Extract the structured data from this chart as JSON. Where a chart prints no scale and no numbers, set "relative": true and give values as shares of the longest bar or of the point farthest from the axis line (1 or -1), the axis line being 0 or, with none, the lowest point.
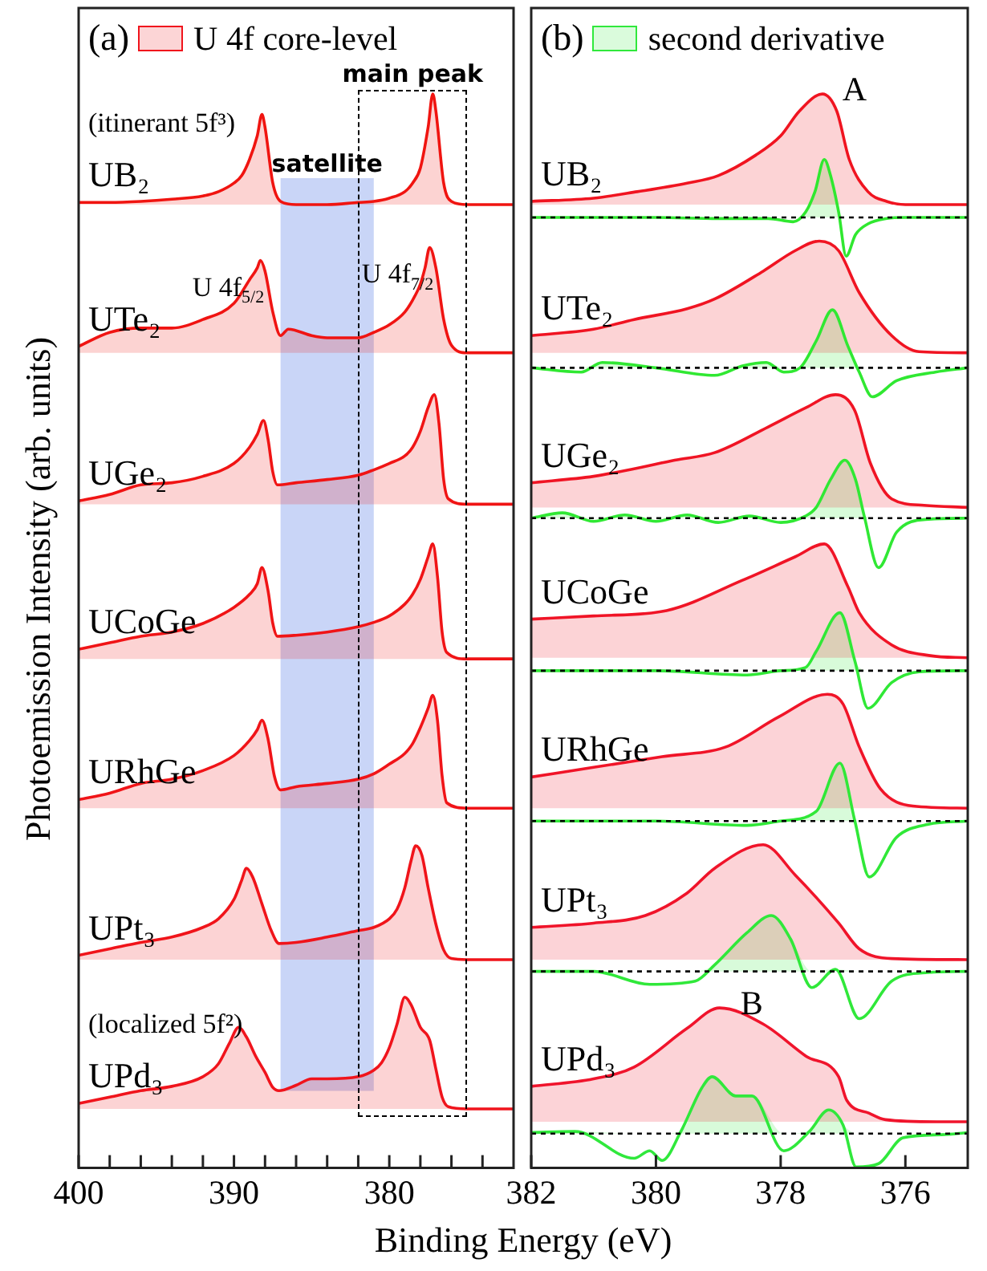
{
  "chart_data": [
    {
      "type": "line",
      "title": "(a)",
      "legend_title": "U 4f core-level",
      "legend": "top left",
      "xlabel": "Binding Energy (eV)",
      "ylabel": "Photoemission Intensity (arb. units)",
      "relative": true,
      "xlim": [
        400,
        372
      ],
      "xticks": [
        400,
        {
          "value": 398,
          "label": null
        },
        {
          "value": 396,
          "label": null
        },
        {
          "value": 394,
          "label": null
        },
        {
          "value": 392,
          "label": null
        },
        390,
        {
          "value": 388,
          "label": null
        },
        {
          "value": 386,
          "label": null
        },
        {
          "value": 384,
          "label": null
        },
        {
          "value": 382,
          "label": null
        },
        380,
        {
          "value": 378,
          "label": null
        },
        {
          "value": 376,
          "label": null
        },
        {
          "value": 374,
          "label": null
        }
      ],
      "bands": [
        {
          "axis": "x",
          "from": 387,
          "to": 381,
          "label": "satellite",
          "color": "#c9d5f7"
        }
      ],
      "annotations": [
        "(itinerant 5f³)",
        {
          "text": "U 4f$_{5/2}$",
          "x": 388.3,
          "y": 0.845
        },
        {
          "text": "U 4f$_{7/2}$",
          "x": 377.4,
          "y": 0.857
        },
        "main peak",
        "(localized 5f²)"
      ],
      "series": [
        {
          "name": "UB₂",
          "color": "#f01410",
          "x": [
            400,
            398,
            396,
            394,
            392,
            391,
            390,
            389.5,
            389,
            388.5,
            388.2,
            388,
            387.5,
            387,
            386,
            384,
            382,
            381,
            380,
            379,
            378.5,
            378,
            377.5,
            377.2,
            377,
            376.5,
            376,
            375,
            374,
            372
          ],
          "values": [
            0.899,
            0.899,
            0.9,
            0.902,
            0.905,
            0.909,
            0.917,
            0.924,
            0.939,
            0.961,
            0.981,
            0.969,
            0.917,
            0.9,
            0.897,
            0.897,
            0.899,
            0.9,
            0.903,
            0.909,
            0.917,
            0.931,
            0.969,
            1.0,
            0.984,
            0.917,
            0.9,
            0.897,
            0.897,
            0.897
          ],
          "lower": [
            0.897,
            0.897,
            0.897,
            0.897,
            0.897,
            0.897,
            0.897,
            0.897,
            0.897,
            0.897,
            0.897,
            0.897,
            0.897,
            0.897,
            0.897,
            0.897,
            0.897,
            0.897,
            0.897,
            0.897,
            0.897,
            0.897,
            0.897,
            0.897,
            0.897,
            0.897,
            0.897,
            0.897,
            0.897,
            0.897
          ],
          "upper": [
            0.899,
            0.899,
            0.9,
            0.902,
            0.905,
            0.909,
            0.917,
            0.924,
            0.939,
            0.961,
            0.981,
            0.969,
            0.917,
            0.9,
            0.897,
            0.897,
            0.899,
            0.9,
            0.903,
            0.909,
            0.917,
            0.931,
            0.969,
            1.0,
            0.984,
            0.917,
            0.9,
            0.897,
            0.897,
            0.897
          ]
        },
        {
          "name": "UTe₂",
          "color": "#f01412",
          "x": [
            400,
            398,
            396,
            394,
            392,
            390,
            389,
            388.5,
            388.3,
            388,
            387.5,
            387,
            386.5,
            385,
            384,
            382,
            381,
            380,
            379,
            378.5,
            378,
            377.7,
            377.4,
            377,
            376.5,
            376,
            375,
            374,
            372
          ],
          "values": [
            0.765,
            0.778,
            0.782,
            0.782,
            0.79,
            0.805,
            0.827,
            0.838,
            0.845,
            0.835,
            0.797,
            0.775,
            0.781,
            0.775,
            0.773,
            0.773,
            0.778,
            0.785,
            0.797,
            0.808,
            0.823,
            0.838,
            0.857,
            0.838,
            0.79,
            0.766,
            0.759,
            0.759,
            0.759
          ],
          "lower": [
            0.759,
            0.759,
            0.759,
            0.759,
            0.759,
            0.759,
            0.759,
            0.759,
            0.759,
            0.759,
            0.759,
            0.759,
            0.759,
            0.759,
            0.759,
            0.759,
            0.759,
            0.759,
            0.759,
            0.759,
            0.759,
            0.759,
            0.759,
            0.759,
            0.759,
            0.759,
            0.759,
            0.759,
            0.759
          ],
          "upper": [
            0.765,
            0.778,
            0.782,
            0.782,
            0.79,
            0.805,
            0.827,
            0.838,
            0.845,
            0.835,
            0.797,
            0.775,
            0.781,
            0.775,
            0.773,
            0.773,
            0.778,
            0.785,
            0.797,
            0.808,
            0.823,
            0.838,
            0.857,
            0.838,
            0.79,
            0.766,
            0.759,
            0.759,
            0.759
          ]
        },
        {
          "name": "UGe₂",
          "color": "#f01414",
          "x": [
            400,
            398,
            396,
            394,
            392,
            390,
            389,
            388.5,
            388.1,
            387.8,
            387.5,
            387.2,
            386,
            384,
            382,
            381,
            380,
            379,
            378.5,
            378,
            377.5,
            377.1,
            376.8,
            376.5,
            376.2,
            375,
            374,
            372
          ],
          "values": [
            0.621,
            0.627,
            0.636,
            0.638,
            0.644,
            0.656,
            0.671,
            0.683,
            0.696,
            0.678,
            0.648,
            0.636,
            0.638,
            0.641,
            0.645,
            0.65,
            0.656,
            0.663,
            0.671,
            0.686,
            0.708,
            0.72,
            0.693,
            0.641,
            0.623,
            0.618,
            0.618,
            0.618
          ],
          "lower": [
            0.618,
            0.618,
            0.618,
            0.618,
            0.618,
            0.618,
            0.618,
            0.618,
            0.618,
            0.618,
            0.618,
            0.618,
            0.618,
            0.618,
            0.618,
            0.618,
            0.618,
            0.618,
            0.618,
            0.618,
            0.618,
            0.618,
            0.618,
            0.618,
            0.618,
            0.618,
            0.618,
            0.618
          ],
          "upper": [
            0.621,
            0.627,
            0.636,
            0.638,
            0.644,
            0.656,
            0.671,
            0.683,
            0.696,
            0.678,
            0.648,
            0.636,
            0.638,
            0.641,
            0.645,
            0.65,
            0.656,
            0.663,
            0.671,
            0.686,
            0.708,
            0.72,
            0.693,
            0.641,
            0.623,
            0.618,
            0.618,
            0.618
          ]
        },
        {
          "name": "UCoGe",
          "color": "#f01416",
          "x": [
            400,
            398,
            396,
            394,
            392,
            390,
            389,
            388.5,
            388.2,
            387.8,
            387.5,
            387.2,
            386,
            384,
            382,
            381,
            380,
            379,
            378.5,
            378,
            377.5,
            377.2,
            376.9,
            376.6,
            376.3,
            375,
            374,
            372
          ],
          "values": [
            0.483,
            0.489,
            0.495,
            0.499,
            0.507,
            0.522,
            0.534,
            0.544,
            0.559,
            0.537,
            0.507,
            0.495,
            0.496,
            0.499,
            0.504,
            0.508,
            0.514,
            0.525,
            0.534,
            0.548,
            0.569,
            0.581,
            0.551,
            0.499,
            0.48,
            0.474,
            0.474,
            0.474
          ],
          "lower": [
            0.474,
            0.474,
            0.474,
            0.474,
            0.474,
            0.474,
            0.474,
            0.474,
            0.474,
            0.474,
            0.474,
            0.474,
            0.474,
            0.474,
            0.474,
            0.474,
            0.474,
            0.474,
            0.474,
            0.474,
            0.474,
            0.474,
            0.474,
            0.474,
            0.474,
            0.474,
            0.474,
            0.474
          ],
          "upper": [
            0.483,
            0.489,
            0.495,
            0.499,
            0.507,
            0.522,
            0.534,
            0.544,
            0.559,
            0.537,
            0.507,
            0.495,
            0.496,
            0.499,
            0.504,
            0.508,
            0.514,
            0.525,
            0.534,
            0.548,
            0.569,
            0.581,
            0.551,
            0.499,
            0.48,
            0.474,
            0.474,
            0.474
          ]
        },
        {
          "name": "URhGe",
          "color": "#f01418",
          "x": [
            400,
            398,
            396,
            394,
            392,
            390,
            389,
            388.5,
            388.2,
            387.8,
            387.4,
            387,
            386,
            384,
            382,
            381,
            380,
            379,
            378.5,
            378,
            377.5,
            377.2,
            376.9,
            376.6,
            376.3,
            375,
            374,
            372
          ],
          "values": [
            0.343,
            0.349,
            0.358,
            0.362,
            0.37,
            0.384,
            0.398,
            0.408,
            0.417,
            0.399,
            0.365,
            0.352,
            0.355,
            0.358,
            0.362,
            0.367,
            0.376,
            0.386,
            0.395,
            0.41,
            0.428,
            0.44,
            0.417,
            0.365,
            0.34,
            0.335,
            0.335,
            0.335
          ],
          "lower": [
            0.335,
            0.335,
            0.335,
            0.335,
            0.335,
            0.335,
            0.335,
            0.335,
            0.335,
            0.335,
            0.335,
            0.335,
            0.335,
            0.335,
            0.335,
            0.335,
            0.335,
            0.335,
            0.335,
            0.335,
            0.335,
            0.335,
            0.335,
            0.335,
            0.335,
            0.335,
            0.335,
            0.335
          ],
          "upper": [
            0.343,
            0.349,
            0.358,
            0.362,
            0.37,
            0.384,
            0.398,
            0.408,
            0.417,
            0.399,
            0.365,
            0.352,
            0.355,
            0.358,
            0.362,
            0.367,
            0.376,
            0.386,
            0.395,
            0.41,
            0.428,
            0.44,
            0.417,
            0.365,
            0.34,
            0.335,
            0.335,
            0.335
          ]
        },
        {
          "name": "UPt₃",
          "color": "#f0141a",
          "x": [
            400,
            398,
            396,
            394,
            392,
            391,
            390,
            389.5,
            389.2,
            388.8,
            388.2,
            387.6,
            387.1,
            386,
            384,
            382,
            381,
            380,
            379.5,
            379,
            378.6,
            378.3,
            377.9,
            377.5,
            377,
            376.5,
            376,
            375,
            374,
            372
          ],
          "values": [
            0.198,
            0.204,
            0.21,
            0.215,
            0.224,
            0.232,
            0.25,
            0.268,
            0.279,
            0.271,
            0.246,
            0.221,
            0.209,
            0.21,
            0.215,
            0.221,
            0.224,
            0.232,
            0.241,
            0.261,
            0.286,
            0.3,
            0.291,
            0.261,
            0.227,
            0.203,
            0.195,
            0.194,
            0.194,
            0.194
          ],
          "lower": [
            0.194,
            0.194,
            0.194,
            0.194,
            0.194,
            0.194,
            0.194,
            0.194,
            0.194,
            0.194,
            0.194,
            0.194,
            0.194,
            0.194,
            0.194,
            0.194,
            0.194,
            0.194,
            0.194,
            0.194,
            0.194,
            0.194,
            0.194,
            0.194,
            0.194,
            0.194,
            0.194,
            0.194,
            0.194,
            0.194
          ],
          "upper": [
            0.198,
            0.204,
            0.21,
            0.215,
            0.224,
            0.232,
            0.25,
            0.268,
            0.279,
            0.271,
            0.246,
            0.221,
            0.209,
            0.21,
            0.215,
            0.221,
            0.224,
            0.232,
            0.241,
            0.261,
            0.286,
            0.3,
            0.291,
            0.261,
            0.227,
            0.203,
            0.195,
            0.194,
            0.194,
            0.194
          ]
        },
        {
          "name": "UPd₃",
          "color": "#f0141c",
          "x": [
            400,
            398,
            396,
            394,
            392,
            391,
            390.3,
            389.7,
            389.2,
            388.6,
            388,
            387.5,
            387.1,
            386,
            385,
            384,
            382,
            381,
            380.5,
            380,
            379.5,
            379,
            378.6,
            378,
            377.4,
            377,
            376.6,
            376.2,
            375,
            374,
            372
          ],
          "values": [
            0.06,
            0.066,
            0.072,
            0.076,
            0.085,
            0.097,
            0.116,
            0.131,
            0.122,
            0.104,
            0.089,
            0.075,
            0.072,
            0.077,
            0.083,
            0.083,
            0.085,
            0.091,
            0.098,
            0.112,
            0.134,
            0.159,
            0.152,
            0.131,
            0.119,
            0.092,
            0.066,
            0.057,
            0.055,
            0.055,
            0.055
          ],
          "lower": [
            0.055,
            0.055,
            0.055,
            0.055,
            0.055,
            0.055,
            0.055,
            0.055,
            0.055,
            0.055,
            0.055,
            0.055,
            0.055,
            0.055,
            0.055,
            0.055,
            0.055,
            0.055,
            0.055,
            0.055,
            0.055,
            0.055,
            0.055,
            0.055,
            0.055,
            0.055,
            0.055,
            0.055,
            0.055,
            0.055,
            0.055
          ],
          "upper": [
            0.06,
            0.066,
            0.072,
            0.076,
            0.085,
            0.097,
            0.116,
            0.131,
            0.122,
            0.104,
            0.089,
            0.075,
            0.072,
            0.077,
            0.083,
            0.083,
            0.085,
            0.091,
            0.098,
            0.112,
            0.134,
            0.159,
            0.152,
            0.131,
            0.119,
            0.092,
            0.066,
            0.057,
            0.055,
            0.055,
            0.055
          ]
        }
      ]
    },
    {
      "type": "line",
      "title": "(b)",
      "legend_title": "second derivative",
      "legend": "top left",
      "relative": true,
      "xlim": [
        382,
        375
      ],
      "xticks": [
        382,
        380,
        378,
        376
      ],
      "ref_lines": [
        {
          "axis": "y",
          "value": 0.885,
          "color": "#000000",
          "line_style": "dotted"
        },
        {
          "axis": "y",
          "value": 0.745,
          "color": "#000000",
          "line_style": "dotted"
        },
        {
          "axis": "y",
          "value": 0.605,
          "color": "#000000",
          "line_style": "dotted"
        },
        {
          "axis": "y",
          "value": 0.463,
          "color": "#000000",
          "line_style": "dotted"
        },
        {
          "axis": "y",
          "value": 0.323,
          "color": "#000000",
          "line_style": "dotted"
        },
        {
          "axis": "y",
          "value": 0.183,
          "color": "#000000",
          "line_style": "dotted"
        },
        {
          "axis": "y",
          "value": 0.032,
          "color": "#000000",
          "line_style": "dotted"
        }
      ],
      "annotations": [
        {
          "text": "A",
          "x": 377.33,
          "y": 1.0
        },
        {
          "text": "B",
          "x": 378.98,
          "y": 0.149
        }
      ],
      "series": [
        {
          "name": "UB₂",
          "color": "#f01420",
          "x": [
            382,
            381,
            380.3,
            379.5,
            379,
            378.4,
            378,
            377.7,
            377.33,
            377.1,
            376.9,
            376.6,
            376.3,
            376,
            375.5,
            375
          ],
          "values": [
            0.9,
            0.903,
            0.909,
            0.917,
            0.924,
            0.943,
            0.961,
            0.984,
            1.0,
            0.984,
            0.939,
            0.909,
            0.9,
            0.897,
            0.897,
            0.897
          ],
          "lower": [
            0.897,
            0.897,
            0.897,
            0.897,
            0.897,
            0.897,
            0.897,
            0.897,
            0.897,
            0.897,
            0.897,
            0.897,
            0.897,
            0.897,
            0.897,
            0.897
          ],
          "upper": [
            0.9,
            0.903,
            0.909,
            0.917,
            0.924,
            0.943,
            0.961,
            0.984,
            1.0,
            0.984,
            0.939,
            0.909,
            0.9,
            0.897,
            0.897,
            0.897
          ]
        },
        {
          "color": "#30e830",
          "x": [
            382,
            381,
            380,
            379,
            378.2,
            377.8,
            377.6,
            377.45,
            377.3,
            377.2,
            377.07,
            376.95,
            376.8,
            376.6,
            376.3,
            376,
            375
          ],
          "values": [
            0.885,
            0.885,
            0.885,
            0.884,
            0.884,
            0.881,
            0.89,
            0.909,
            0.939,
            0.924,
            0.89,
            0.849,
            0.869,
            0.879,
            0.884,
            0.885,
            0.885
          ],
          "lower": [
            0.885,
            0.885,
            0.885,
            0.885,
            0.885,
            0.885,
            0.885,
            0.885,
            0.885,
            0.885,
            0.885,
            0.885,
            0.885,
            0.885,
            0.885,
            0.885,
            0.885
          ],
          "upper": [
            0.885,
            0.885,
            0.885,
            0.885,
            0.885,
            0.885,
            0.89,
            0.909,
            0.939,
            0.924,
            0.89,
            0.885,
            0.885,
            0.885,
            0.885,
            0.885,
            0.885
          ]
        },
        {
          "name": "UTe₂",
          "color": "#f01422",
          "x": [
            382,
            381,
            380.35,
            379.5,
            379.06,
            378.28,
            377.77,
            377.38,
            377.07,
            376.74,
            376.22,
            375.78,
            375
          ],
          "values": [
            0.775,
            0.781,
            0.79,
            0.8,
            0.809,
            0.835,
            0.854,
            0.863,
            0.854,
            0.815,
            0.775,
            0.76,
            0.759
          ],
          "lower": [
            0.759,
            0.759,
            0.759,
            0.759,
            0.759,
            0.759,
            0.759,
            0.759,
            0.759,
            0.759,
            0.759,
            0.759,
            0.759
          ],
          "upper": [
            0.775,
            0.781,
            0.79,
            0.8,
            0.809,
            0.835,
            0.854,
            0.863,
            0.854,
            0.815,
            0.775,
            0.76,
            0.759
          ]
        },
        {
          "color": "#30e832",
          "x": [
            382,
            381.2,
            380.86,
            380,
            379.06,
            378.6,
            378.23,
            377.95,
            377.69,
            377.43,
            377.17,
            376.92,
            376.74,
            376.53,
            376.14,
            375.52,
            375
          ],
          "values": [
            0.745,
            0.741,
            0.75,
            0.745,
            0.738,
            0.747,
            0.75,
            0.741,
            0.745,
            0.77,
            0.799,
            0.765,
            0.741,
            0.718,
            0.733,
            0.741,
            0.745
          ],
          "lower": [
            0.745,
            0.745,
            0.745,
            0.745,
            0.745,
            0.745,
            0.745,
            0.745,
            0.745,
            0.745,
            0.745,
            0.745,
            0.745,
            0.745,
            0.745,
            0.745,
            0.745
          ],
          "upper": [
            0.745,
            0.745,
            0.75,
            0.745,
            0.745,
            0.747,
            0.75,
            0.745,
            0.745,
            0.77,
            0.799,
            0.765,
            0.745,
            0.745,
            0.745,
            0.745,
            0.745
          ]
        },
        {
          "name": "UGe₂",
          "color": "#f01424",
          "x": [
            382,
            381,
            380.35,
            379.7,
            379.06,
            378.2,
            377.59,
            377.12,
            376.81,
            376.56,
            376.22,
            375.7,
            375
          ],
          "values": [
            0.638,
            0.644,
            0.651,
            0.659,
            0.666,
            0.69,
            0.708,
            0.72,
            0.705,
            0.656,
            0.623,
            0.617,
            0.615
          ],
          "lower": [
            0.615,
            0.615,
            0.615,
            0.615,
            0.615,
            0.615,
            0.615,
            0.615,
            0.615,
            0.615,
            0.615,
            0.615,
            0.615
          ],
          "upper": [
            0.638,
            0.644,
            0.651,
            0.659,
            0.666,
            0.69,
            0.708,
            0.72,
            0.705,
            0.656,
            0.623,
            0.617,
            0.615
          ]
        },
        {
          "color": "#30e834",
          "x": [
            382,
            381.5,
            381,
            380.5,
            380,
            379.5,
            379,
            378.5,
            378,
            377.6,
            377.43,
            377.2,
            376.97,
            376.8,
            376.66,
            376.43,
            376.14,
            375.63,
            375
          ],
          "values": [
            0.605,
            0.61,
            0.602,
            0.608,
            0.602,
            0.608,
            0.601,
            0.607,
            0.601,
            0.607,
            0.615,
            0.641,
            0.659,
            0.641,
            0.607,
            0.559,
            0.592,
            0.604,
            0.605
          ],
          "lower": [
            0.605,
            0.605,
            0.605,
            0.605,
            0.605,
            0.605,
            0.605,
            0.605,
            0.605,
            0.605,
            0.605,
            0.605,
            0.605,
            0.605,
            0.605,
            0.605,
            0.605,
            0.605,
            0.605
          ],
          "upper": [
            0.605,
            0.61,
            0.605,
            0.608,
            0.605,
            0.608,
            0.605,
            0.607,
            0.605,
            0.607,
            0.615,
            0.641,
            0.659,
            0.641,
            0.607,
            0.605,
            0.605,
            0.605,
            0.605
          ]
        },
        {
          "name": "UCoGe",
          "color": "#f01426",
          "x": [
            382,
            381,
            379.83,
            378.62,
            377.77,
            377.3,
            376.92,
            376.74,
            376.22,
            375.6,
            375
          ],
          "values": [
            0.511,
            0.514,
            0.519,
            0.547,
            0.569,
            0.581,
            0.541,
            0.517,
            0.487,
            0.477,
            0.475
          ],
          "lower": [
            0.475,
            0.475,
            0.475,
            0.475,
            0.475,
            0.475,
            0.475,
            0.475,
            0.475,
            0.475,
            0.475
          ],
          "upper": [
            0.511,
            0.514,
            0.519,
            0.547,
            0.569,
            0.581,
            0.541,
            0.517,
            0.487,
            0.477,
            0.475
          ]
        },
        {
          "color": "#30e836",
          "x": [
            382,
            380,
            378.54,
            378,
            377.6,
            377.43,
            377.05,
            376.81,
            376.6,
            376.22,
            375.78,
            375
          ],
          "values": [
            0.463,
            0.463,
            0.459,
            0.463,
            0.466,
            0.481,
            0.517,
            0.472,
            0.428,
            0.452,
            0.462,
            0.463
          ],
          "lower": [
            0.463,
            0.463,
            0.463,
            0.463,
            0.463,
            0.463,
            0.463,
            0.463,
            0.463,
            0.463,
            0.463,
            0.463
          ],
          "upper": [
            0.463,
            0.463,
            0.463,
            0.463,
            0.466,
            0.481,
            0.517,
            0.472,
            0.463,
            0.463,
            0.463,
            0.463
          ]
        },
        {
          "name": "URhGe",
          "color": "#f01428",
          "x": [
            382,
            381,
            379.9,
            378.88,
            378.03,
            377.25,
            377.0,
            376.74,
            376.4,
            375.88,
            375
          ],
          "values": [
            0.364,
            0.373,
            0.383,
            0.392,
            0.42,
            0.441,
            0.432,
            0.392,
            0.353,
            0.337,
            0.335
          ],
          "lower": [
            0.335,
            0.335,
            0.335,
            0.335,
            0.335,
            0.335,
            0.335,
            0.335,
            0.335,
            0.335,
            0.335
          ],
          "upper": [
            0.364,
            0.373,
            0.383,
            0.392,
            0.42,
            0.441,
            0.432,
            0.392,
            0.353,
            0.337,
            0.335
          ]
        },
        {
          "color": "#30e838",
          "x": [
            382,
            380,
            378.54,
            378,
            377.43,
            377.05,
            376.81,
            376.58,
            376.14,
            375.63,
            375
          ],
          "values": [
            0.323,
            0.323,
            0.319,
            0.323,
            0.332,
            0.377,
            0.323,
            0.271,
            0.308,
            0.32,
            0.323
          ],
          "lower": [
            0.323,
            0.323,
            0.323,
            0.323,
            0.323,
            0.323,
            0.323,
            0.323,
            0.323,
            0.323,
            0.323
          ],
          "upper": [
            0.323,
            0.323,
            0.323,
            0.323,
            0.332,
            0.377,
            0.323,
            0.323,
            0.323,
            0.323,
            0.323
          ]
        },
        {
          "name": "UPt₃",
          "color": "#f0142a",
          "x": [
            382,
            381,
            380.17,
            379.5,
            379.06,
            378.28,
            377.77,
            377.07,
            376.74,
            376.22,
            375
          ],
          "values": [
            0.224,
            0.228,
            0.235,
            0.256,
            0.279,
            0.301,
            0.273,
            0.228,
            0.204,
            0.195,
            0.194
          ],
          "lower": [
            0.194,
            0.194,
            0.194,
            0.194,
            0.194,
            0.194,
            0.194,
            0.194,
            0.194,
            0.194,
            0.194
          ],
          "upper": [
            0.224,
            0.228,
            0.235,
            0.256,
            0.279,
            0.301,
            0.273,
            0.228,
            0.204,
            0.195,
            0.194
          ]
        },
        {
          "color": "#30e83a",
          "x": [
            382,
            381,
            380.1,
            379.37,
            379.06,
            378.54,
            378.15,
            377.84,
            377.5,
            377.12,
            376.74,
            376.22,
            375.63,
            375
          ],
          "values": [
            0.183,
            0.183,
            0.171,
            0.174,
            0.189,
            0.219,
            0.235,
            0.213,
            0.168,
            0.185,
            0.139,
            0.174,
            0.182,
            0.183
          ],
          "lower": [
            0.183,
            0.183,
            0.183,
            0.183,
            0.183,
            0.183,
            0.183,
            0.183,
            0.183,
            0.183,
            0.183,
            0.183,
            0.183,
            0.183
          ],
          "upper": [
            0.183,
            0.183,
            0.183,
            0.183,
            0.189,
            0.219,
            0.235,
            0.213,
            0.183,
            0.185,
            0.183,
            0.183,
            0.183,
            0.183
          ]
        },
        {
          "name": "UPd₃",
          "color": "#f0142c",
          "x": [
            382,
            381,
            380.35,
            379.5,
            378.98,
            378.28,
            377.59,
            377.07,
            376.94,
            376.58,
            376.32,
            375.5,
            375
          ],
          "values": [
            0.076,
            0.083,
            0.094,
            0.13,
            0.149,
            0.134,
            0.104,
            0.085,
            0.063,
            0.051,
            0.045,
            0.043,
            0.043
          ],
          "lower": [
            0.043,
            0.043,
            0.043,
            0.043,
            0.043,
            0.043,
            0.043,
            0.043,
            0.043,
            0.043,
            0.043,
            0.043,
            0.043
          ],
          "upper": [
            0.076,
            0.083,
            0.094,
            0.13,
            0.149,
            0.134,
            0.104,
            0.085,
            0.063,
            0.051,
            0.045,
            0.043,
            0.043
          ]
        },
        {
          "color": "#30e83c",
          "x": [
            382,
            381.3,
            380.35,
            380.1,
            379.9,
            379.6,
            379.26,
            379.1,
            378.72,
            378.46,
            377.95,
            377.54,
            377.23,
            377.0,
            376.79,
            376.43,
            376.04,
            375.42,
            375
          ],
          "values": [
            0.033,
            0.034,
            0.009,
            0.016,
            0.007,
            0.034,
            0.075,
            0.085,
            0.067,
            0.067,
            0.016,
            0.034,
            0.054,
            0.04,
            0.001,
            0.004,
            0.028,
            0.031,
            0.033
          ],
          "lower": [
            0.032,
            0.032,
            0.032,
            0.032,
            0.032,
            0.032,
            0.032,
            0.032,
            0.032,
            0.032,
            0.032,
            0.032,
            0.032,
            0.032,
            0.032,
            0.032,
            0.032,
            0.032,
            0.032
          ],
          "upper": [
            0.033,
            0.034,
            0.032,
            0.032,
            0.032,
            0.034,
            0.075,
            0.085,
            0.067,
            0.067,
            0.032,
            0.034,
            0.054,
            0.04,
            0.032,
            0.032,
            0.032,
            0.032,
            0.033
          ]
        }
      ]
    }
  ]
}
